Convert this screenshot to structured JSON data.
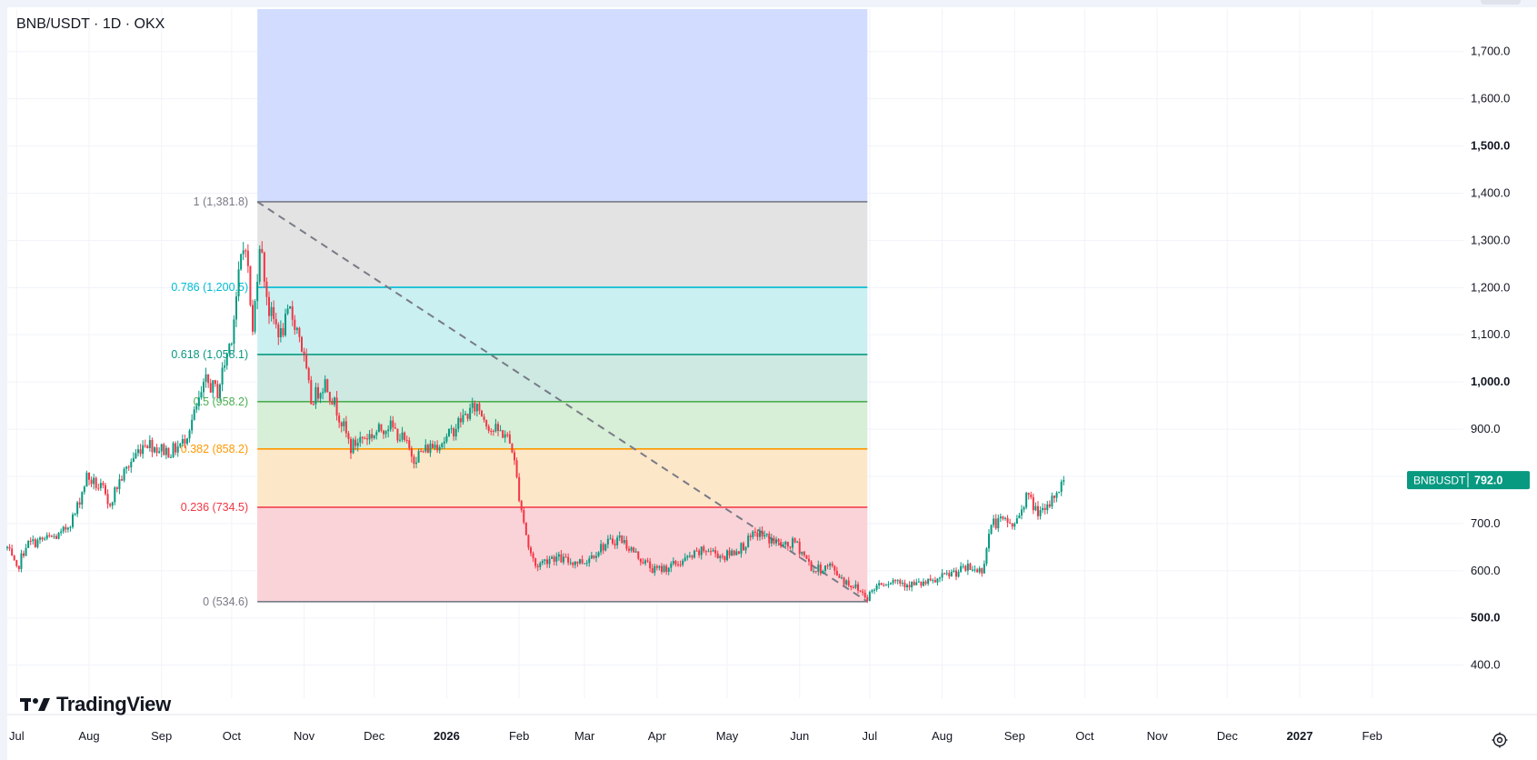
{
  "header": {
    "title": "BNB/USDT · 1D · OKX"
  },
  "brand": {
    "name": "TradingView"
  },
  "price_tag": {
    "label": "BNBUSDT",
    "value": "792.0",
    "color": "#089981"
  },
  "colors": {
    "up": "#089981",
    "down": "#f23645",
    "grid": "#f0f3fa",
    "trend": "#787b86"
  },
  "chart_data": {
    "type": "candlestick",
    "title": "BNB/USDT · 1D · OKX",
    "x_axis": {
      "range": [
        "2025-06-27",
        "2027-03-12"
      ],
      "ticks": [
        {
          "date": "2025-07-01",
          "label": "Jul",
          "bold": false
        },
        {
          "date": "2025-08-01",
          "label": "Aug",
          "bold": false
        },
        {
          "date": "2025-09-01",
          "label": "Sep",
          "bold": false
        },
        {
          "date": "2025-10-01",
          "label": "Oct",
          "bold": false
        },
        {
          "date": "2025-11-01",
          "label": "Nov",
          "bold": false
        },
        {
          "date": "2025-12-01",
          "label": "Dec",
          "bold": false
        },
        {
          "date": "2026-01-01",
          "label": "2026",
          "bold": true
        },
        {
          "date": "2026-02-01",
          "label": "Feb",
          "bold": false
        },
        {
          "date": "2026-03-01",
          "label": "Mar",
          "bold": false
        },
        {
          "date": "2026-04-01",
          "label": "Apr",
          "bold": false
        },
        {
          "date": "2026-05-01",
          "label": "May",
          "bold": false
        },
        {
          "date": "2026-06-01",
          "label": "Jun",
          "bold": false
        },
        {
          "date": "2026-07-01",
          "label": "Jul",
          "bold": false
        },
        {
          "date": "2026-08-01",
          "label": "Aug",
          "bold": false
        },
        {
          "date": "2026-09-01",
          "label": "Sep",
          "bold": false
        },
        {
          "date": "2026-10-01",
          "label": "Oct",
          "bold": false
        },
        {
          "date": "2026-11-01",
          "label": "Nov",
          "bold": false
        },
        {
          "date": "2026-12-01",
          "label": "Dec",
          "bold": false
        },
        {
          "date": "2027-01-01",
          "label": "2027",
          "bold": true
        },
        {
          "date": "2027-02-01",
          "label": "Feb",
          "bold": false
        }
      ]
    },
    "y_axis": {
      "range": [
        330,
        1790
      ],
      "ticks": [
        {
          "value": 400,
          "label": "400.0",
          "bold": false
        },
        {
          "value": 500,
          "label": "500.0",
          "bold": true
        },
        {
          "value": 600,
          "label": "600.0",
          "bold": false
        },
        {
          "value": 700,
          "label": "700.0",
          "bold": false
        },
        {
          "value": 800,
          "label": "800.0",
          "bold": false
        },
        {
          "value": 900,
          "label": "900.0",
          "bold": false
        },
        {
          "value": 1000,
          "label": "1,000.0",
          "bold": true
        },
        {
          "value": 1100,
          "label": "1,100.0",
          "bold": false
        },
        {
          "value": 1200,
          "label": "1,200.0",
          "bold": false
        },
        {
          "value": 1300,
          "label": "1,300.0",
          "bold": false
        },
        {
          "value": 1400,
          "label": "1,400.0",
          "bold": false
        },
        {
          "value": 1500,
          "label": "1,500.0",
          "bold": true
        },
        {
          "value": 1600,
          "label": "1,600.0",
          "bold": false
        },
        {
          "value": 1700,
          "label": "1,700.0",
          "bold": false
        }
      ]
    },
    "last_price": 792.0,
    "series": [
      {
        "date": "2025-06-27",
        "close": 648
      },
      {
        "date": "2025-07-01",
        "close": 600
      },
      {
        "date": "2025-07-05",
        "close": 655
      },
      {
        "date": "2025-07-12",
        "close": 665
      },
      {
        "date": "2025-07-20",
        "close": 675
      },
      {
        "date": "2025-07-26",
        "close": 720
      },
      {
        "date": "2025-07-31",
        "close": 800
      },
      {
        "date": "2025-08-02",
        "close": 790
      },
      {
        "date": "2025-08-07",
        "close": 770
      },
      {
        "date": "2025-08-09",
        "close": 735
      },
      {
        "date": "2025-08-14",
        "close": 790
      },
      {
        "date": "2025-08-20",
        "close": 840
      },
      {
        "date": "2025-08-25",
        "close": 875
      },
      {
        "date": "2025-08-30",
        "close": 860
      },
      {
        "date": "2025-09-05",
        "close": 852
      },
      {
        "date": "2025-09-10",
        "close": 870
      },
      {
        "date": "2025-09-15",
        "close": 930
      },
      {
        "date": "2025-09-20",
        "close": 1000
      },
      {
        "date": "2025-09-25",
        "close": 980
      },
      {
        "date": "2025-10-01",
        "close": 1100
      },
      {
        "date": "2025-10-05",
        "close": 1260
      },
      {
        "date": "2025-10-07",
        "close": 1300
      },
      {
        "date": "2025-10-10",
        "close": 1100
      },
      {
        "date": "2025-10-13",
        "close": 1300
      },
      {
        "date": "2025-10-17",
        "close": 1150
      },
      {
        "date": "2025-10-22",
        "close": 1100
      },
      {
        "date": "2025-10-26",
        "close": 1150
      },
      {
        "date": "2025-10-30",
        "close": 1100
      },
      {
        "date": "2025-11-04",
        "close": 960
      },
      {
        "date": "2025-11-10",
        "close": 1000
      },
      {
        "date": "2025-11-16",
        "close": 930
      },
      {
        "date": "2025-11-21",
        "close": 860
      },
      {
        "date": "2025-11-25",
        "close": 880
      },
      {
        "date": "2025-12-01",
        "close": 890
      },
      {
        "date": "2025-12-07",
        "close": 910
      },
      {
        "date": "2025-12-13",
        "close": 880
      },
      {
        "date": "2025-12-18",
        "close": 840
      },
      {
        "date": "2025-12-24",
        "close": 860
      },
      {
        "date": "2026-01-01",
        "close": 880
      },
      {
        "date": "2026-01-07",
        "close": 920
      },
      {
        "date": "2026-01-14",
        "close": 950
      },
      {
        "date": "2026-01-20",
        "close": 900
      },
      {
        "date": "2026-01-26",
        "close": 890
      },
      {
        "date": "2026-01-29",
        "close": 860
      },
      {
        "date": "2026-02-01",
        "close": 760
      },
      {
        "date": "2026-02-05",
        "close": 650
      },
      {
        "date": "2026-02-08",
        "close": 610
      },
      {
        "date": "2026-02-15",
        "close": 630
      },
      {
        "date": "2026-02-22",
        "close": 620
      },
      {
        "date": "2026-03-01",
        "close": 620
      },
      {
        "date": "2026-03-08",
        "close": 650
      },
      {
        "date": "2026-03-16",
        "close": 670
      },
      {
        "date": "2026-03-24",
        "close": 630
      },
      {
        "date": "2026-03-31",
        "close": 600
      },
      {
        "date": "2026-04-07",
        "close": 610
      },
      {
        "date": "2026-04-14",
        "close": 625
      },
      {
        "date": "2026-04-22",
        "close": 645
      },
      {
        "date": "2026-04-30",
        "close": 630
      },
      {
        "date": "2026-05-07",
        "close": 650
      },
      {
        "date": "2026-05-14",
        "close": 680
      },
      {
        "date": "2026-05-20",
        "close": 665
      },
      {
        "date": "2026-05-26",
        "close": 650
      },
      {
        "date": "2026-05-30",
        "close": 660
      },
      {
        "date": "2026-06-02",
        "close": 640
      },
      {
        "date": "2026-06-07",
        "close": 600
      },
      {
        "date": "2026-06-14",
        "close": 610
      },
      {
        "date": "2026-06-20",
        "close": 580
      },
      {
        "date": "2026-06-25",
        "close": 565
      },
      {
        "date": "2026-06-30",
        "close": 545
      },
      {
        "date": "2026-07-05",
        "close": 575
      },
      {
        "date": "2026-07-12",
        "close": 580
      },
      {
        "date": "2026-07-20",
        "close": 570
      },
      {
        "date": "2026-07-28",
        "close": 575
      },
      {
        "date": "2026-08-05",
        "close": 595
      },
      {
        "date": "2026-08-12",
        "close": 605
      },
      {
        "date": "2026-08-18",
        "close": 600
      },
      {
        "date": "2026-08-22",
        "close": 700
      },
      {
        "date": "2026-08-28",
        "close": 705
      },
      {
        "date": "2026-09-01",
        "close": 695
      },
      {
        "date": "2026-09-06",
        "close": 760
      },
      {
        "date": "2026-09-10",
        "close": 730
      },
      {
        "date": "2026-09-14",
        "close": 720
      },
      {
        "date": "2026-09-18",
        "close": 760
      },
      {
        "date": "2026-09-22",
        "close": 792
      }
    ],
    "drawings": {
      "fib_retracement": {
        "start_date": "2025-10-12",
        "end_date": "2026-06-30",
        "high": 1381.8,
        "low": 534.6,
        "top_zone_to": 1790,
        "top_zone_color": "#d1dcff",
        "levels": [
          {
            "ratio": 1,
            "value": 1381.8,
            "label": "1 (1,381.8)",
            "color": "#787b86",
            "fill": "#e3e3e3"
          },
          {
            "ratio": 0.786,
            "value": 1200.5,
            "label": "0.786 (1,200.5)",
            "color": "#00bcd4",
            "fill": "#caf0f1"
          },
          {
            "ratio": 0.618,
            "value": 1058.1,
            "label": "0.618 (1,058.1)",
            "color": "#089981",
            "fill": "#cde9e2"
          },
          {
            "ratio": 0.5,
            "value": 958.2,
            "label": "0.5 (958.2)",
            "color": "#4caf50",
            "fill": "#d7eed7"
          },
          {
            "ratio": 0.382,
            "value": 858.2,
            "label": "0.382 (858.2)",
            "color": "#ff9800",
            "fill": "#fde7c9"
          },
          {
            "ratio": 0.236,
            "value": 734.5,
            "label": "0.236 (734.5)",
            "color": "#f23645",
            "fill": "#fad3d8"
          },
          {
            "ratio": 0,
            "value": 534.6,
            "label": "0 (534.6)",
            "color": "#787b86",
            "fill": null
          }
        ]
      },
      "trend_line": {
        "from": {
          "date": "2025-10-12",
          "value": 1381.8
        },
        "to": {
          "date": "2026-06-30",
          "value": 534.6
        }
      }
    }
  }
}
